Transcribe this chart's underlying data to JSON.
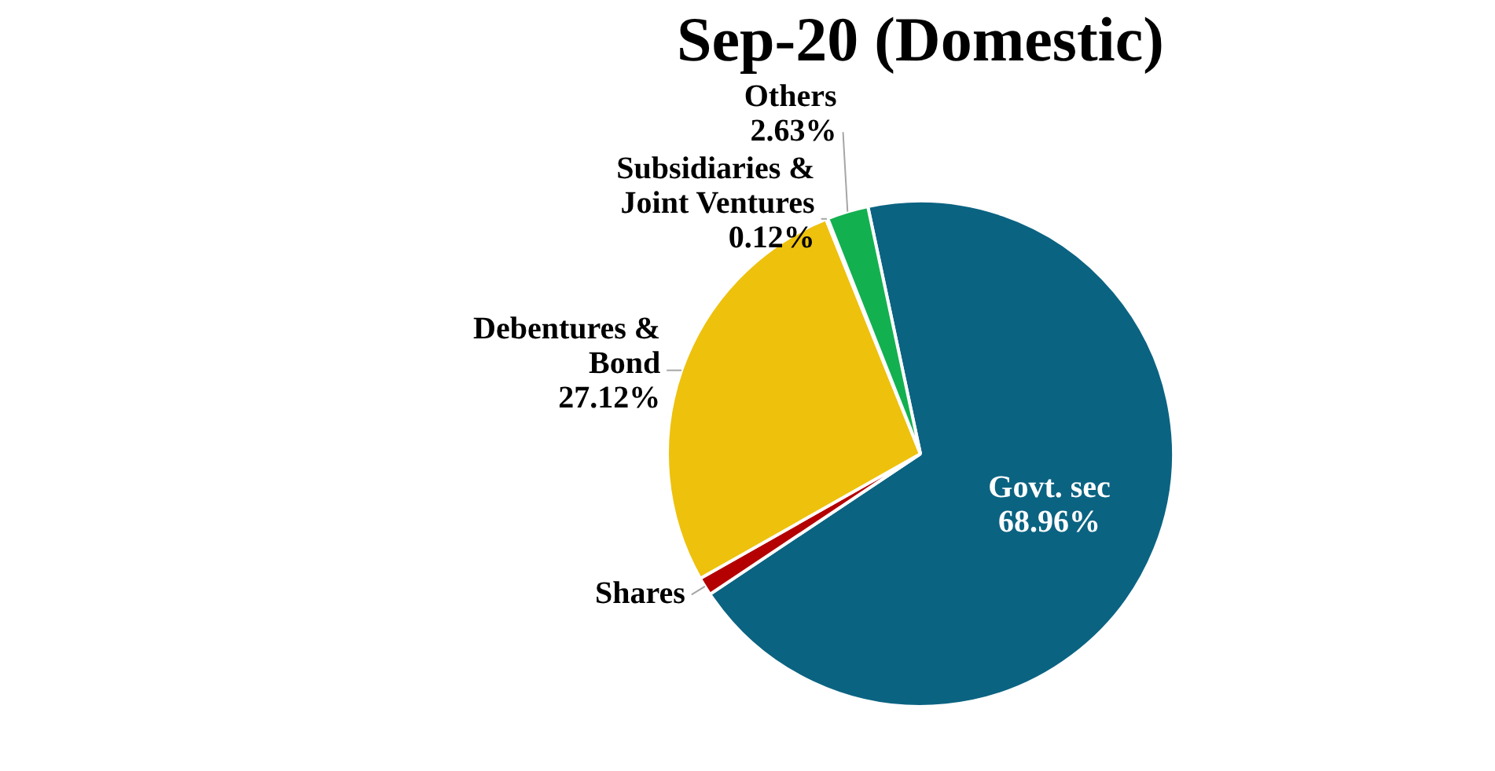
{
  "chart_data": {
    "type": "pie",
    "title": "Sep-20 (Domestic)",
    "categories": [
      "Govt. sec",
      "Shares",
      "Debentures & Bond",
      "Subsidiaries & Joint Ventures",
      "Others"
    ],
    "values": [
      68.96,
      1.17,
      27.12,
      0.12,
      2.63
    ],
    "colors": [
      "#0b6382",
      "#b40000",
      "#eec10c",
      "#8c8c8c",
      "#13b050"
    ],
    "value_labels": [
      "68.96%",
      null,
      "27.12%",
      "0.12%",
      "2.63%"
    ]
  }
}
